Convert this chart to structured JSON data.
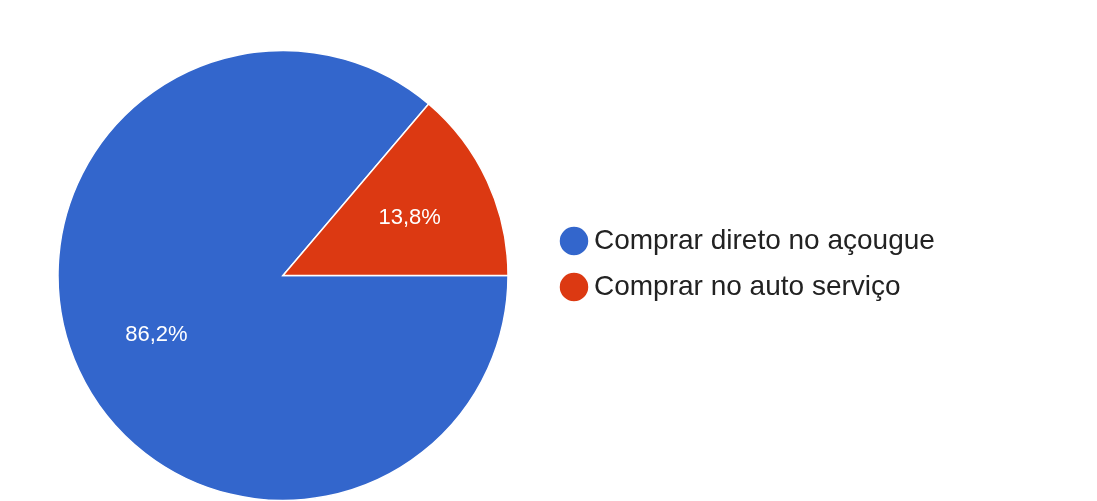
{
  "chart_data": {
    "type": "pie",
    "categories": [
      "Comprar direto no açougue",
      "Comprar no auto serviço"
    ],
    "values": [
      86.2,
      13.8
    ],
    "colors": [
      "#3366cc",
      "#dc3912"
    ],
    "value_labels": [
      "86,2%",
      "13,8%"
    ],
    "legend": "right"
  }
}
